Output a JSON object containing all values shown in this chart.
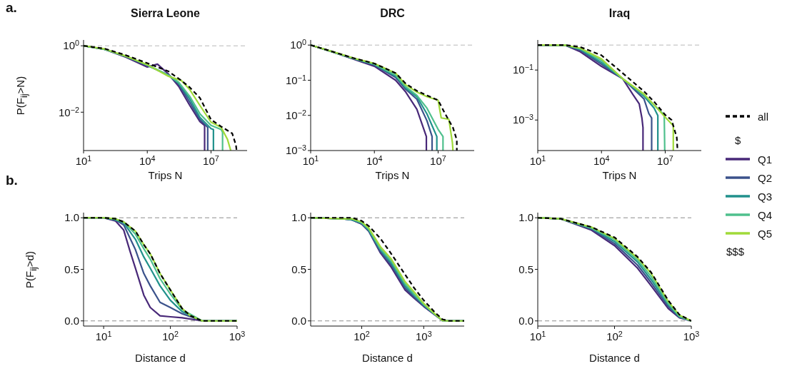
{
  "chart_data": [
    {
      "type": "line",
      "title": "Sierra Leone",
      "xlabel": "Trips N",
      "ylabel": "P(F$_{ij}$>N)",
      "annotations": [
        "a."
      ],
      "log": "xy",
      "marker": "none",
      "legend": false,
      "xlim": [
        10,
        500000000
      ],
      "xticks": [
        {
          "value": 10,
          "label": "10$^{1}$"
        },
        {
          "value": 10000,
          "label": "10$^{4}$"
        },
        {
          "value": 10000000,
          "label": "10$^{7}$"
        }
      ],
      "ylim": [
        0.0007,
        1.5
      ],
      "yticks": [
        {
          "value": 1,
          "label": "10$^{0}$"
        },
        {
          "value": 0.01,
          "label": "10$^{−2}$"
        }
      ],
      "ref_lines": [
        {
          "axis": "y",
          "value": 1,
          "color": "#b0b0b0",
          "line_style": "dashed"
        }
      ],
      "series": [
        {
          "color": "#482878",
          "x": [
            10,
            100,
            1000,
            10000,
            30000,
            100000,
            300000,
            1000000,
            3000000,
            5000000,
            5000000
          ],
          "values": [
            1,
            0.78,
            0.45,
            0.23,
            0.28,
            0.14,
            0.06,
            0.016,
            0.0052,
            0.004,
            0.0007
          ]
        },
        {
          "color": "#3b528b",
          "x": [
            10,
            100,
            1000,
            10000,
            100000,
            300000,
            1000000,
            3000000,
            7000000,
            7000000
          ],
          "values": [
            1,
            0.78,
            0.47,
            0.26,
            0.13,
            0.07,
            0.02,
            0.006,
            0.0035,
            0.0007
          ]
        },
        {
          "color": "#21918c",
          "x": [
            10,
            100,
            1000,
            10000,
            100000,
            300000,
            1000000,
            3000000,
            10000000,
            13000000,
            13000000
          ],
          "values": [
            1,
            0.78,
            0.48,
            0.26,
            0.13,
            0.075,
            0.025,
            0.007,
            0.0032,
            0.003,
            0.0007
          ]
        },
        {
          "color": "#4fc08d",
          "x": [
            10,
            100,
            1000,
            10000,
            100000,
            300000,
            1000000,
            3000000,
            10000000,
            30000000,
            35000000,
            35000000
          ],
          "values": [
            1,
            0.78,
            0.48,
            0.27,
            0.13,
            0.08,
            0.03,
            0.009,
            0.004,
            0.003,
            0.0025,
            0.0007
          ]
        },
        {
          "color": "#a0da39",
          "x": [
            10,
            100,
            1000,
            10000,
            100000,
            400000,
            1000000,
            3000000,
            10000000,
            30000000,
            60000000,
            85000000
          ],
          "values": [
            1,
            0.8,
            0.49,
            0.27,
            0.12,
            0.09,
            0.048,
            0.016,
            0.005,
            0.0035,
            0.0015,
            0.0007
          ]
        },
        {
          "color": "#000000",
          "line_style": "dashed",
          "x": [
            10,
            100,
            1000,
            10000,
            100000,
            400000,
            1000000,
            3000000,
            10000000,
            30000000,
            100000000,
            150000000,
            160000000
          ],
          "values": [
            1,
            0.82,
            0.52,
            0.3,
            0.17,
            0.09,
            0.056,
            0.027,
            0.006,
            0.0037,
            0.0023,
            0.001,
            0.0007
          ]
        }
      ]
    },
    {
      "type": "line",
      "title": "DRC",
      "xlabel": "Trips N",
      "log": "xy",
      "marker": "none",
      "legend": false,
      "xlim": [
        10,
        500000000
      ],
      "xticks": [
        {
          "value": 10,
          "label": "10$^{1}$"
        },
        {
          "value": 10000,
          "label": "10$^{4}$"
        },
        {
          "value": 10000000,
          "label": "10$^{7}$"
        }
      ],
      "ylim": [
        0.001,
        1.4
      ],
      "yticks": [
        {
          "value": 1,
          "label": "10$^{0}$"
        },
        {
          "value": 0.1,
          "label": "10$^{−1}$"
        },
        {
          "value": 0.01,
          "label": "10$^{−2}$"
        },
        {
          "value": 0.001,
          "label": "10$^{−3}$"
        }
      ],
      "ref_lines": [
        {
          "axis": "y",
          "value": 1,
          "color": "#b0b0b0",
          "line_style": "dashed"
        }
      ],
      "series": [
        {
          "color": "#482878",
          "x": [
            10,
            100,
            1000,
            10000,
            100000,
            300000,
            1000000,
            2800000,
            2800000
          ],
          "values": [
            1,
            0.65,
            0.4,
            0.25,
            0.1,
            0.046,
            0.015,
            0.0025,
            0.001
          ]
        },
        {
          "color": "#3b528b",
          "x": [
            10,
            100,
            1000,
            10000,
            100000,
            300000,
            1000000,
            3000000,
            5200000,
            5200000
          ],
          "values": [
            1,
            0.65,
            0.41,
            0.27,
            0.12,
            0.055,
            0.029,
            0.007,
            0.0025,
            0.001
          ]
        },
        {
          "color": "#21918c",
          "x": [
            10,
            100,
            1000,
            10000,
            100000,
            300000,
            1000000,
            3000000,
            8700000,
            8700000
          ],
          "values": [
            1,
            0.65,
            0.42,
            0.28,
            0.13,
            0.06,
            0.034,
            0.011,
            0.0025,
            0.001
          ]
        },
        {
          "color": "#4fc08d",
          "x": [
            10,
            100,
            1000,
            10000,
            100000,
            300000,
            1000000,
            3000000,
            10000000,
            17000000,
            17000000
          ],
          "values": [
            1,
            0.65,
            0.42,
            0.29,
            0.14,
            0.065,
            0.037,
            0.016,
            0.004,
            0.0025,
            0.001
          ]
        },
        {
          "color": "#a0da39",
          "x": [
            10,
            100,
            1000,
            10000,
            100000,
            300000,
            1000000,
            3000000,
            10000000,
            14000000,
            32000000,
            47000000,
            50000000
          ],
          "values": [
            1,
            0.66,
            0.43,
            0.3,
            0.16,
            0.074,
            0.046,
            0.034,
            0.027,
            0.0085,
            0.0078,
            0.0017,
            0.001
          ]
        },
        {
          "color": "#000000",
          "line_style": "dashed",
          "x": [
            10,
            100,
            1000,
            10000,
            100000,
            300000,
            1000000,
            3000000,
            10000000,
            20000000,
            50000000,
            76000000,
            76000000
          ],
          "values": [
            1,
            0.66,
            0.43,
            0.3,
            0.16,
            0.08,
            0.05,
            0.037,
            0.027,
            0.012,
            0.0045,
            0.002,
            0.001
          ]
        }
      ]
    },
    {
      "type": "line",
      "title": "Iraq",
      "xlabel": "Trips N",
      "log": "xy",
      "marker": "none",
      "legend": "right",
      "legend_title": "$",
      "annotations": [
        "$$$"
      ],
      "xlim": [
        10,
        500000000
      ],
      "xticks": [
        {
          "value": 10,
          "label": "10$^{1}$"
        },
        {
          "value": 10000,
          "label": "10$^{4}$"
        },
        {
          "value": 10000000,
          "label": "10$^{7}$"
        }
      ],
      "ylim": [
        6e-05,
        1.6
      ],
      "yticks": [
        {
          "value": 0.1,
          "label": "10$^{−1}$"
        },
        {
          "value": 0.001,
          "label": "10$^{−3}$"
        }
      ],
      "ref_lines": [
        {
          "axis": "y",
          "value": 1,
          "color": "#b0b0b0",
          "line_style": "dashed"
        }
      ],
      "series": [
        {
          "name": "Q1",
          "color": "#482878",
          "x": [
            10,
            200,
            1000,
            10000,
            100000,
            300000,
            600000,
            800000,
            900000,
            900000
          ],
          "values": [
            1,
            0.97,
            0.54,
            0.14,
            0.045,
            0.0105,
            0.0044,
            0.0012,
            0.0005,
            6e-05
          ]
        },
        {
          "name": "Q2",
          "color": "#3b528b",
          "x": [
            10,
            200,
            1000,
            10000,
            100000,
            1000000,
            1700000,
            2300000,
            2300000
          ],
          "values": [
            1,
            0.98,
            0.62,
            0.17,
            0.045,
            0.007,
            0.0018,
            0.0012,
            6e-05
          ]
        },
        {
          "name": "Q3",
          "color": "#21918c",
          "x": [
            10,
            200,
            1000,
            10000,
            100000,
            1000000,
            3000000,
            4500000,
            4500000
          ],
          "values": [
            1,
            0.98,
            0.67,
            0.2,
            0.045,
            0.009,
            0.003,
            0.0015,
            6e-05
          ]
        },
        {
          "name": "Q4",
          "color": "#4fc08d",
          "x": [
            10,
            200,
            1000,
            10000,
            100000,
            1000000,
            3000000,
            9000000,
            9500000
          ],
          "values": [
            1,
            0.99,
            0.71,
            0.24,
            0.045,
            0.01,
            0.004,
            0.0016,
            6e-05
          ]
        },
        {
          "name": "Q5",
          "color": "#a0da39",
          "x": [
            10,
            200,
            1000,
            10000,
            100000,
            1000000,
            3000000,
            10000000,
            20000000,
            24000000,
            24000000
          ],
          "values": [
            1,
            0.99,
            0.75,
            0.28,
            0.045,
            0.011,
            0.004,
            0.0013,
            0.0007,
            0.0006,
            6e-05
          ]
        },
        {
          "name": "all",
          "color": "#000000",
          "line_style": "dashed",
          "x": [
            10,
            200,
            1000,
            10000,
            100000,
            1000000,
            3000000,
            10000000,
            20000000,
            35000000,
            38000000
          ],
          "values": [
            1,
            1,
            0.84,
            0.39,
            0.075,
            0.014,
            0.0054,
            0.0016,
            0.001,
            0.0002,
            6e-05
          ]
        }
      ]
    },
    {
      "type": "line",
      "xlabel": "Distance d",
      "ylabel": "P(F$_{ij}$>d)",
      "annotations": [
        "b."
      ],
      "log": "x",
      "marker": "none",
      "legend": false,
      "xlim": [
        5,
        1000
      ],
      "xticks": [
        {
          "value": 10,
          "label": "10$^{1}$"
        },
        {
          "value": 100,
          "label": "10$^{2}$"
        },
        {
          "value": 1000,
          "label": "10$^{3}$"
        }
      ],
      "ylim": [
        -0.05,
        1.05
      ],
      "yticks": [
        {
          "value": 0,
          "label": "0.0"
        },
        {
          "value": 0.5,
          "label": "0.5"
        },
        {
          "value": 1,
          "label": "1.0"
        }
      ],
      "ref_lines": [
        {
          "axis": "y",
          "value": 1,
          "color": "#808080",
          "line_style": "dashed"
        },
        {
          "axis": "y",
          "value": 0,
          "color": "#808080",
          "line_style": "dashed"
        }
      ],
      "series": [
        {
          "color": "#482878",
          "x": [
            5,
            10,
            15,
            20,
            25,
            30,
            40,
            50,
            70,
            100,
            150,
            300,
            1000
          ],
          "values": [
            1,
            1,
            0.97,
            0.88,
            0.67,
            0.51,
            0.25,
            0.13,
            0.05,
            0.04,
            0.03,
            0,
            0
          ]
        },
        {
          "color": "#3b528b",
          "x": [
            5,
            10,
            15,
            20,
            30,
            40,
            50,
            70,
            100,
            150,
            300,
            1000
          ],
          "values": [
            1,
            1,
            0.98,
            0.93,
            0.69,
            0.46,
            0.34,
            0.18,
            0.13,
            0.07,
            0,
            0
          ]
        },
        {
          "color": "#21918c",
          "x": [
            5,
            10,
            15,
            20,
            30,
            40,
            50,
            70,
            100,
            150,
            300,
            1000
          ],
          "values": [
            1,
            1,
            0.98,
            0.95,
            0.79,
            0.62,
            0.51,
            0.34,
            0.2,
            0.09,
            0,
            0
          ]
        },
        {
          "color": "#4fc08d",
          "x": [
            5,
            10,
            15,
            20,
            30,
            40,
            50,
            70,
            100,
            150,
            300,
            1000
          ],
          "values": [
            1,
            1,
            0.99,
            0.96,
            0.84,
            0.7,
            0.6,
            0.41,
            0.26,
            0.11,
            0,
            0
          ]
        },
        {
          "color": "#a0da39",
          "x": [
            5,
            10,
            15,
            20,
            30,
            40,
            50,
            70,
            100,
            150,
            200,
            300,
            1000
          ],
          "values": [
            1,
            1,
            0.99,
            0.96,
            0.87,
            0.74,
            0.65,
            0.46,
            0.3,
            0.12,
            0.05,
            0,
            0
          ]
        },
        {
          "color": "#000000",
          "line_style": "dashed",
          "x": [
            5,
            10,
            15,
            20,
            30,
            40,
            50,
            70,
            100,
            150,
            200,
            300,
            1000
          ],
          "values": [
            1,
            1,
            0.99,
            0.96,
            0.87,
            0.74,
            0.65,
            0.46,
            0.3,
            0.12,
            0.05,
            0,
            0
          ]
        }
      ]
    },
    {
      "type": "line",
      "xlabel": "Distance d",
      "log": "x",
      "marker": "none",
      "legend": false,
      "xlim": [
        15,
        4500
      ],
      "xticks": [
        {
          "value": 100,
          "label": "10$^{2}$"
        },
        {
          "value": 1000,
          "label": "10$^{3}$"
        }
      ],
      "ylim": [
        -0.05,
        1.05
      ],
      "yticks": [
        {
          "value": 0,
          "label": "0.0"
        },
        {
          "value": 0.5,
          "label": "0.5"
        },
        {
          "value": 1,
          "label": "1.0"
        }
      ],
      "ref_lines": [
        {
          "axis": "y",
          "value": 1,
          "color": "#808080",
          "line_style": "dashed"
        },
        {
          "axis": "y",
          "value": 0,
          "color": "#808080",
          "line_style": "dashed"
        }
      ],
      "series": [
        {
          "color": "#482878",
          "x": [
            15,
            50,
            70,
            100,
            130,
            200,
            300,
            500,
            700,
            1000,
            1500,
            2000,
            2500,
            4500
          ],
          "values": [
            1,
            0.99,
            0.98,
            0.94,
            0.87,
            0.66,
            0.52,
            0.3,
            0.22,
            0.14,
            0.06,
            0.005,
            0,
            0
          ]
        },
        {
          "color": "#3b528b",
          "x": [
            15,
            50,
            70,
            100,
            130,
            200,
            300,
            500,
            700,
            1000,
            1500,
            2000,
            2500,
            4500
          ],
          "values": [
            1,
            0.99,
            0.98,
            0.94,
            0.87,
            0.67,
            0.54,
            0.32,
            0.23,
            0.145,
            0.063,
            0.005,
            0,
            0
          ]
        },
        {
          "color": "#21918c",
          "x": [
            15,
            50,
            70,
            100,
            130,
            200,
            300,
            500,
            700,
            1000,
            1500,
            2000,
            2500,
            4500
          ],
          "values": [
            1,
            0.99,
            0.98,
            0.95,
            0.88,
            0.69,
            0.56,
            0.34,
            0.25,
            0.155,
            0.065,
            0.005,
            0,
            0
          ]
        },
        {
          "color": "#4fc08d",
          "x": [
            15,
            50,
            70,
            100,
            130,
            200,
            300,
            500,
            700,
            1000,
            1500,
            2000,
            2500,
            4500
          ],
          "values": [
            1,
            0.99,
            0.99,
            0.95,
            0.89,
            0.7,
            0.58,
            0.36,
            0.26,
            0.16,
            0.067,
            0.005,
            0,
            0
          ]
        },
        {
          "color": "#a0da39",
          "x": [
            15,
            50,
            70,
            100,
            130,
            200,
            300,
            500,
            700,
            1000,
            1500,
            2000,
            2500,
            4500
          ],
          "values": [
            1,
            0.99,
            0.99,
            0.96,
            0.9,
            0.72,
            0.6,
            0.38,
            0.28,
            0.17,
            0.07,
            0.005,
            0,
            0
          ]
        },
        {
          "color": "#000000",
          "line_style": "dashed",
          "x": [
            15,
            50,
            70,
            100,
            130,
            200,
            300,
            500,
            700,
            1000,
            1500,
            2000,
            2500,
            4500
          ],
          "values": [
            1,
            1,
            1,
            0.97,
            0.92,
            0.8,
            0.65,
            0.45,
            0.32,
            0.2,
            0.086,
            0.016,
            0,
            0
          ]
        }
      ]
    },
    {
      "type": "line",
      "xlabel": "Distance d",
      "log": "x",
      "marker": "none",
      "legend": false,
      "xlim": [
        10,
        1000
      ],
      "xticks": [
        {
          "value": 10,
          "label": "10$^{1}$"
        },
        {
          "value": 100,
          "label": "10$^{2}$"
        },
        {
          "value": 1000,
          "label": "10$^{3}$"
        }
      ],
      "ylim": [
        -0.05,
        1.05
      ],
      "yticks": [
        {
          "value": 0,
          "label": "0.0"
        },
        {
          "value": 0.5,
          "label": "0.5"
        },
        {
          "value": 1,
          "label": "1.0"
        }
      ],
      "ref_lines": [
        {
          "axis": "y",
          "value": 1,
          "color": "#808080",
          "line_style": "dashed"
        },
        {
          "axis": "y",
          "value": 0,
          "color": "#808080",
          "line_style": "dashed"
        }
      ],
      "series": [
        {
          "color": "#482878",
          "x": [
            10,
            20,
            50,
            100,
            200,
            300,
            500,
            700,
            1000
          ],
          "values": [
            1,
            0.99,
            0.88,
            0.73,
            0.51,
            0.34,
            0.12,
            0.03,
            0
          ]
        },
        {
          "color": "#3b528b",
          "x": [
            10,
            20,
            50,
            100,
            200,
            300,
            500,
            700,
            1000
          ],
          "values": [
            1,
            0.99,
            0.89,
            0.75,
            0.54,
            0.37,
            0.14,
            0.035,
            0
          ]
        },
        {
          "color": "#21918c",
          "x": [
            10,
            20,
            50,
            100,
            200,
            300,
            500,
            700,
            1000
          ],
          "values": [
            1,
            0.99,
            0.9,
            0.77,
            0.57,
            0.4,
            0.16,
            0.04,
            0
          ]
        },
        {
          "color": "#4fc08d",
          "x": [
            10,
            20,
            50,
            100,
            200,
            300,
            500,
            700,
            1000
          ],
          "values": [
            1,
            0.99,
            0.9,
            0.79,
            0.59,
            0.43,
            0.17,
            0.045,
            0
          ]
        },
        {
          "color": "#a0da39",
          "x": [
            10,
            20,
            50,
            100,
            200,
            300,
            500,
            700,
            1000
          ],
          "values": [
            1,
            0.99,
            0.91,
            0.8,
            0.61,
            0.46,
            0.19,
            0.055,
            0
          ]
        },
        {
          "color": "#000000",
          "line_style": "dashed",
          "x": [
            10,
            20,
            50,
            100,
            200,
            300,
            500,
            700,
            1000
          ],
          "values": [
            1,
            0.99,
            0.91,
            0.81,
            0.62,
            0.47,
            0.2,
            0.06,
            0
          ]
        }
      ]
    }
  ]
}
